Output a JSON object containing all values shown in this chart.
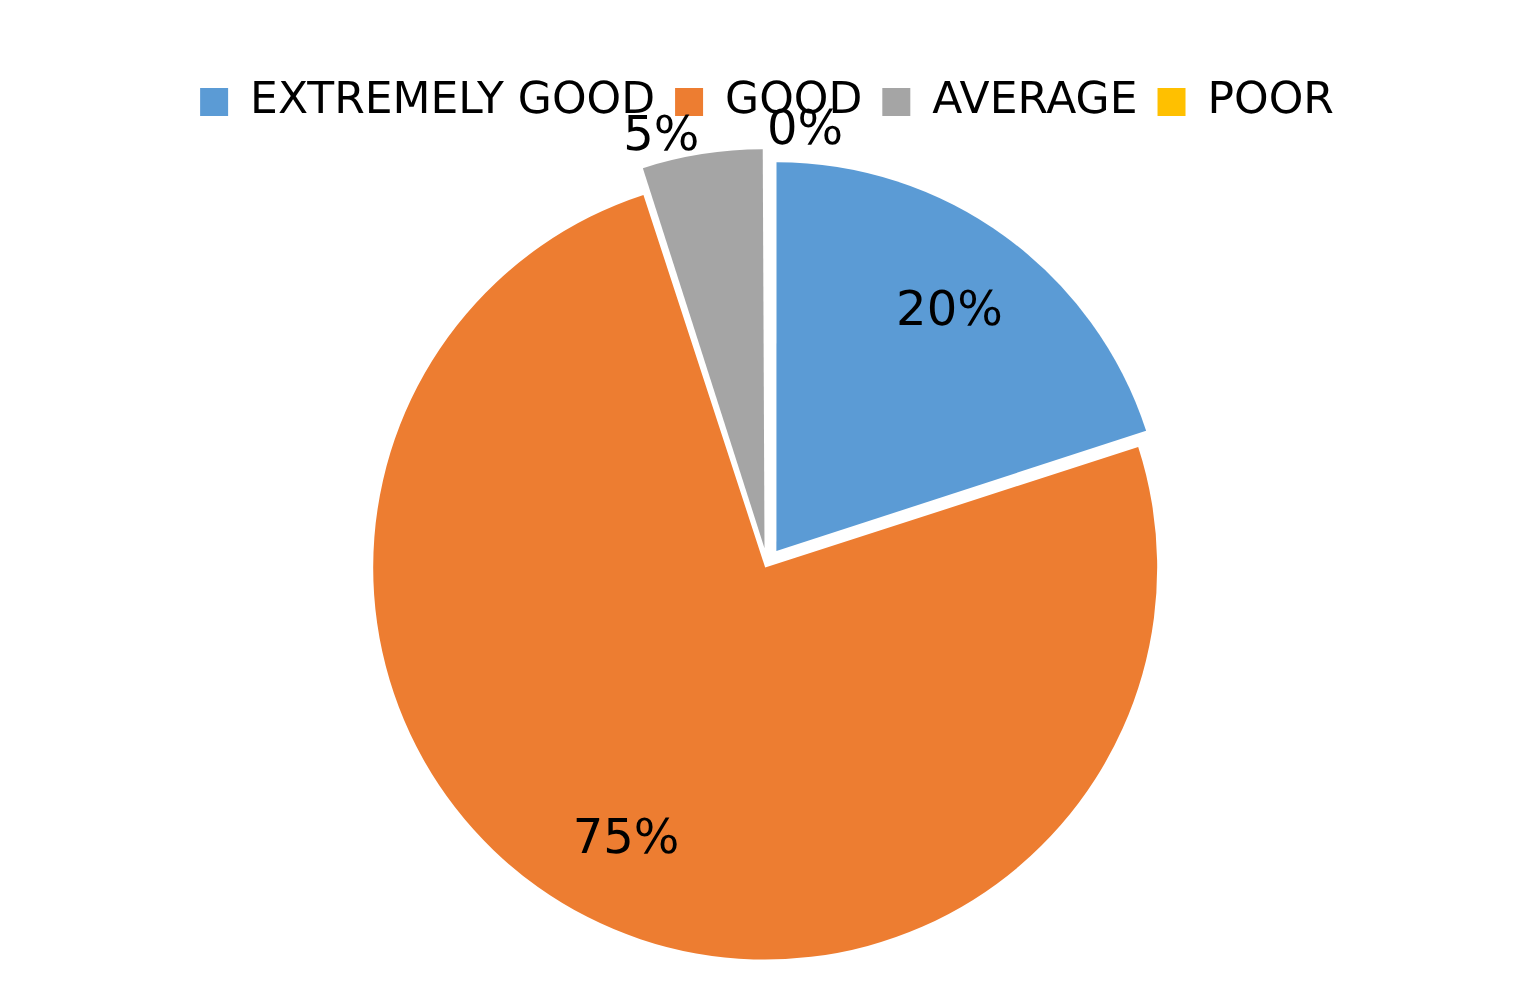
{
  "chart_data": {
    "type": "pie",
    "categories": [
      "EXTREMELY GOOD",
      "GOOD",
      "AVERAGE",
      "POOR"
    ],
    "values": [
      20,
      75,
      5,
      0
    ],
    "colors": [
      "#5b9bd5",
      "#ed7d31",
      "#a5a5a5",
      "#ffc000"
    ],
    "value_labels": [
      "20%",
      "75%",
      "5%",
      "0%"
    ],
    "legend": "top"
  }
}
